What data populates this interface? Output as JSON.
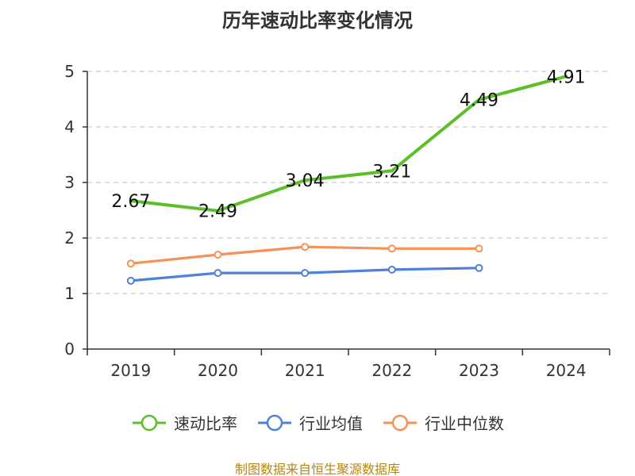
{
  "title": "历年速动比率变化情况",
  "source": "制图数据来自恒生聚源数据库",
  "chart_data": {
    "type": "line",
    "title": "历年速动比率变化情况",
    "xlabel": "",
    "ylabel": "",
    "categories": [
      "2019",
      "2020",
      "2021",
      "2022",
      "2023",
      "2024"
    ],
    "ylim": [
      0,
      5
    ],
    "yticks": [
      0,
      1,
      2,
      3,
      4,
      5
    ],
    "grid": true,
    "legend_position": "bottom",
    "series": [
      {
        "name": "速动比率",
        "color": "#5cbf2a",
        "values": [
          2.67,
          2.49,
          3.04,
          3.21,
          4.49,
          4.91
        ],
        "labels": [
          "2.67",
          "2.49",
          "3.04",
          "3.21",
          "4.49",
          "4.91"
        ],
        "show_labels": true,
        "markers": false
      },
      {
        "name": "行业均值",
        "color": "#4f81d6",
        "values": [
          1.23,
          1.37,
          1.37,
          1.43,
          1.46,
          null
        ],
        "show_labels": false,
        "markers": true
      },
      {
        "name": "行业中位数",
        "color": "#f5925a",
        "values": [
          1.54,
          1.7,
          1.84,
          1.81,
          1.81,
          null
        ],
        "show_labels": false,
        "markers": true
      }
    ]
  }
}
